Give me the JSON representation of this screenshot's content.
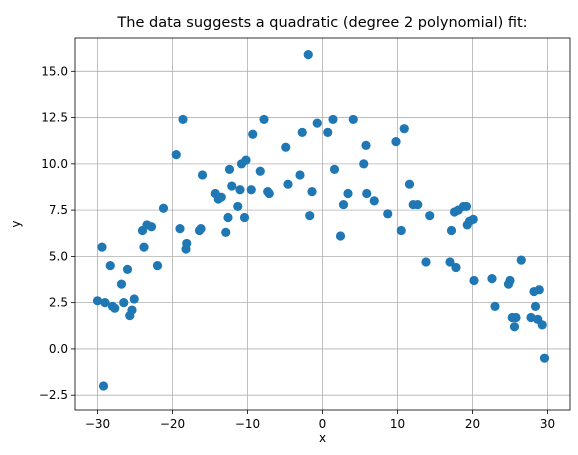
{
  "chart_data": {
    "type": "scatter",
    "title": "The data suggests a quadratic (degree 2 polynomial) fit:",
    "xlabel": "x",
    "ylabel": "y",
    "xlim": [
      -33,
      33
    ],
    "ylim": [
      -3.3,
      16.8
    ],
    "xticks": [
      -30,
      -20,
      -10,
      0,
      10,
      20,
      30
    ],
    "xtick_labels": [
      "−30",
      "−20",
      "−10",
      "0",
      "10",
      "20",
      "30"
    ],
    "yticks": [
      -2.5,
      0.0,
      2.5,
      5.0,
      7.5,
      10.0,
      12.5,
      15.0
    ],
    "ytick_labels": [
      "−2.5",
      "0.0",
      "2.5",
      "5.0",
      "7.5",
      "10.0",
      "12.5",
      "15.0"
    ],
    "grid": true,
    "marker_color": "#1f77b4",
    "series": [
      {
        "x": [
          -30.0,
          -29.4,
          -29.2,
          -29.0,
          -28.3,
          -28.0,
          -27.7,
          -26.8,
          -26.5,
          -26.0,
          -25.7,
          -25.4,
          -25.1,
          -24.0,
          -23.8,
          -23.4,
          -22.8,
          -22.0,
          -21.2,
          -19.5,
          -19.0,
          -18.6,
          -18.2,
          -18.1,
          -16.4,
          -16.2,
          -16.0,
          -14.3,
          -13.9,
          -13.5,
          -12.9,
          -12.6,
          -12.4,
          -12.1,
          -11.3,
          -11.0,
          -10.8,
          -10.4,
          -10.2,
          -9.5,
          -9.3,
          -8.3,
          -7.8,
          -7.3,
          -7.1,
          -4.9,
          -4.6,
          -3.0,
          -2.7,
          -1.9,
          -1.7,
          -1.4,
          -0.7,
          0.7,
          1.4,
          1.6,
          2.4,
          2.8,
          3.4,
          4.1,
          5.5,
          5.8,
          5.9,
          6.9,
          8.7,
          9.8,
          10.5,
          10.9,
          11.6,
          12.1,
          12.7,
          13.8,
          14.3,
          17.0,
          17.2,
          17.6,
          17.8,
          18.1,
          18.8,
          19.2,
          19.3,
          19.6,
          20.1,
          20.2,
          22.6,
          23.0,
          24.8,
          25.0,
          25.3,
          25.6,
          25.8,
          26.5,
          27.8,
          28.2,
          28.4,
          28.7,
          28.9,
          29.3,
          29.6
        ],
        "y": [
          2.6,
          5.5,
          -2.0,
          2.5,
          4.5,
          2.3,
          2.2,
          3.5,
          2.5,
          4.3,
          1.8,
          2.1,
          2.7,
          6.4,
          5.5,
          6.7,
          6.6,
          4.5,
          7.6,
          10.5,
          6.5,
          12.4,
          5.4,
          5.7,
          6.4,
          6.5,
          9.4,
          8.4,
          8.1,
          8.2,
          6.3,
          7.1,
          9.7,
          8.8,
          7.7,
          8.6,
          10.0,
          7.1,
          10.2,
          8.6,
          11.6,
          9.6,
          12.4,
          8.5,
          8.4,
          10.9,
          8.9,
          9.4,
          11.7,
          15.9,
          7.2,
          8.5,
          12.2,
          11.7,
          12.4,
          9.7,
          6.1,
          7.8,
          8.4,
          12.4,
          10.0,
          11.0,
          8.4,
          8.0,
          7.3,
          11.2,
          6.4,
          11.9,
          8.9,
          7.8,
          7.8,
          4.7,
          7.2,
          4.7,
          6.4,
          7.4,
          4.4,
          7.5,
          7.7,
          7.7,
          6.7,
          6.9,
          7.0,
          3.7,
          3.8,
          2.3,
          3.5,
          3.7,
          1.7,
          1.2,
          1.7,
          4.8,
          1.7,
          3.1,
          2.3,
          1.6,
          3.2,
          1.3,
          -0.5
        ]
      }
    ]
  }
}
